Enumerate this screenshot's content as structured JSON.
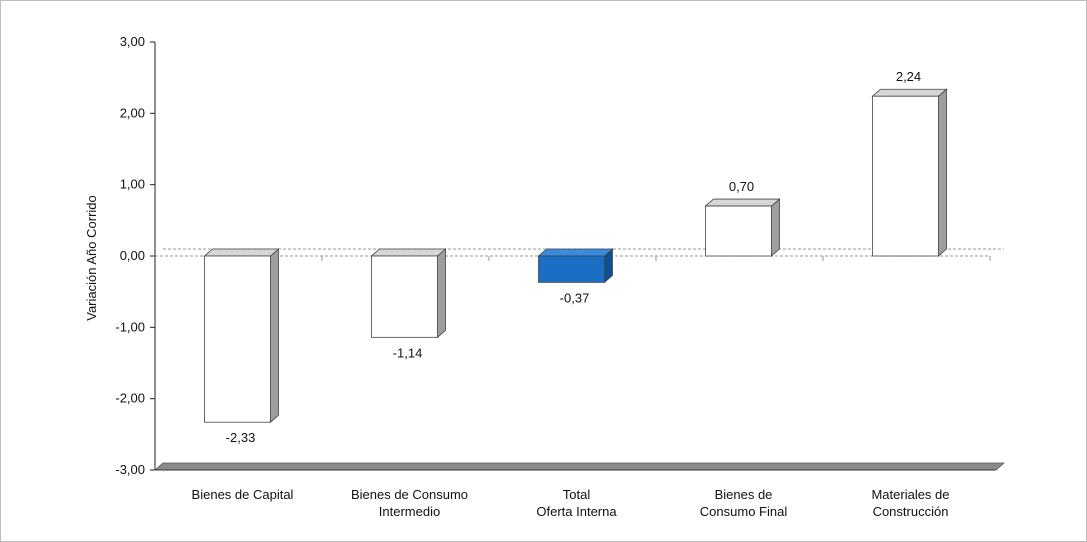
{
  "chart_data": {
    "type": "bar",
    "categories": [
      [
        "Bienes de Capital"
      ],
      [
        "Bienes de Consumo",
        "Intermedio"
      ],
      [
        "Total",
        "Oferta Interna"
      ],
      [
        "Bienes de",
        "Consumo Final"
      ],
      [
        "Materiales de",
        "Construcción"
      ]
    ],
    "values": [
      -2.33,
      -1.14,
      -0.37,
      0.7,
      2.24
    ],
    "value_labels": [
      "-2,33",
      "-1,14",
      "-0,37",
      "0,70",
      "2,24"
    ],
    "highlight_index": 2,
    "ylabel": "Variación Año Corrido",
    "ylim": [
      -3,
      3
    ],
    "yticks": [
      3,
      2,
      1,
      0,
      -1,
      -2,
      -3
    ],
    "ytick_labels": [
      "3,00",
      "2,00",
      "1,00",
      "0,00",
      "-1,00",
      "-2,00",
      "-3,00"
    ],
    "colors": {
      "bar": "#ffffff",
      "highlight": "#1a6fc4",
      "side": "#9e9e9e",
      "floor": "#8a8a8a"
    }
  }
}
